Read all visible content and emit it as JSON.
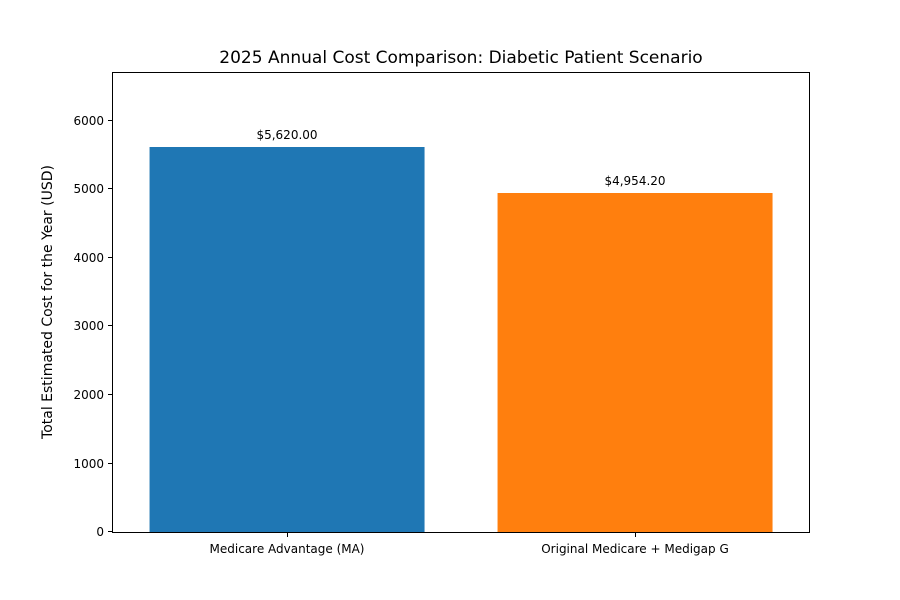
{
  "chart_data": {
    "type": "bar",
    "title": "2025 Annual Cost Comparison: Diabetic Patient Scenario",
    "xlabel": "",
    "ylabel": "Total Estimated Cost for the Year (USD)",
    "categories": [
      "Medicare Advantage (MA)",
      "Original Medicare + Medigap G"
    ],
    "values": [
      5620.0,
      4954.2
    ],
    "bar_labels": [
      "$5,620.00",
      "$4,954.20"
    ],
    "bar_colors": [
      "#1f77b4",
      "#ff7f0e"
    ],
    "ylim": [
      0,
      6700
    ],
    "yticks": [
      0,
      1000,
      2000,
      3000,
      4000,
      5000,
      6000
    ],
    "grid": false,
    "legend": "none",
    "background_color": "#ffffff",
    "spine_color": "#000000"
  }
}
